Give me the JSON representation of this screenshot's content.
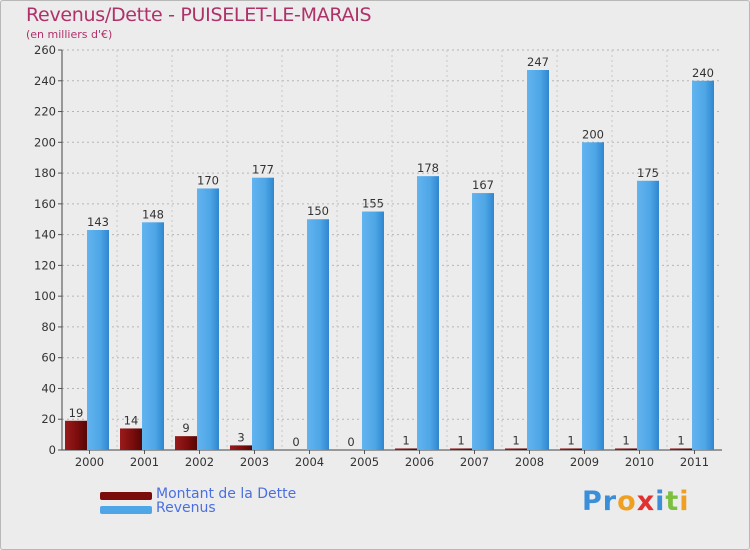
{
  "chart_data": {
    "type": "bar",
    "title": "Revenus/Dette - PUISELET-LE-MARAIS",
    "subtitle": "(en milliers d'€)",
    "categories": [
      "2000",
      "2001",
      "2002",
      "2003",
      "2004",
      "2005",
      "2006",
      "2007",
      "2008",
      "2009",
      "2010",
      "2011"
    ],
    "series": [
      {
        "name": "Montant de la Dette",
        "color": "#7a0c0c",
        "values": [
          19,
          14,
          9,
          3,
          0,
          0,
          1,
          1,
          1,
          1,
          1,
          1
        ]
      },
      {
        "name": "Revenus",
        "color": "#4ea6e6",
        "values": [
          143,
          148,
          170,
          177,
          150,
          155,
          178,
          167,
          247,
          200,
          175,
          240
        ]
      }
    ],
    "ylim": [
      0,
      260
    ],
    "yticks": [
      0,
      20,
      40,
      60,
      80,
      100,
      120,
      140,
      160,
      180,
      200,
      220,
      240,
      260
    ],
    "grid": true,
    "legend_position": "bottom-left"
  },
  "logo": {
    "letters": [
      {
        "char": "P",
        "color": "#3a8fd8"
      },
      {
        "char": "r",
        "color": "#3a8fd8"
      },
      {
        "char": "o",
        "color": "#f0a020"
      },
      {
        "char": "x",
        "color": "#e03030"
      },
      {
        "char": "i",
        "color": "#3a8fd8"
      },
      {
        "char": "t",
        "color": "#7cc040"
      },
      {
        "char": "i",
        "color": "#f0a020"
      }
    ]
  }
}
